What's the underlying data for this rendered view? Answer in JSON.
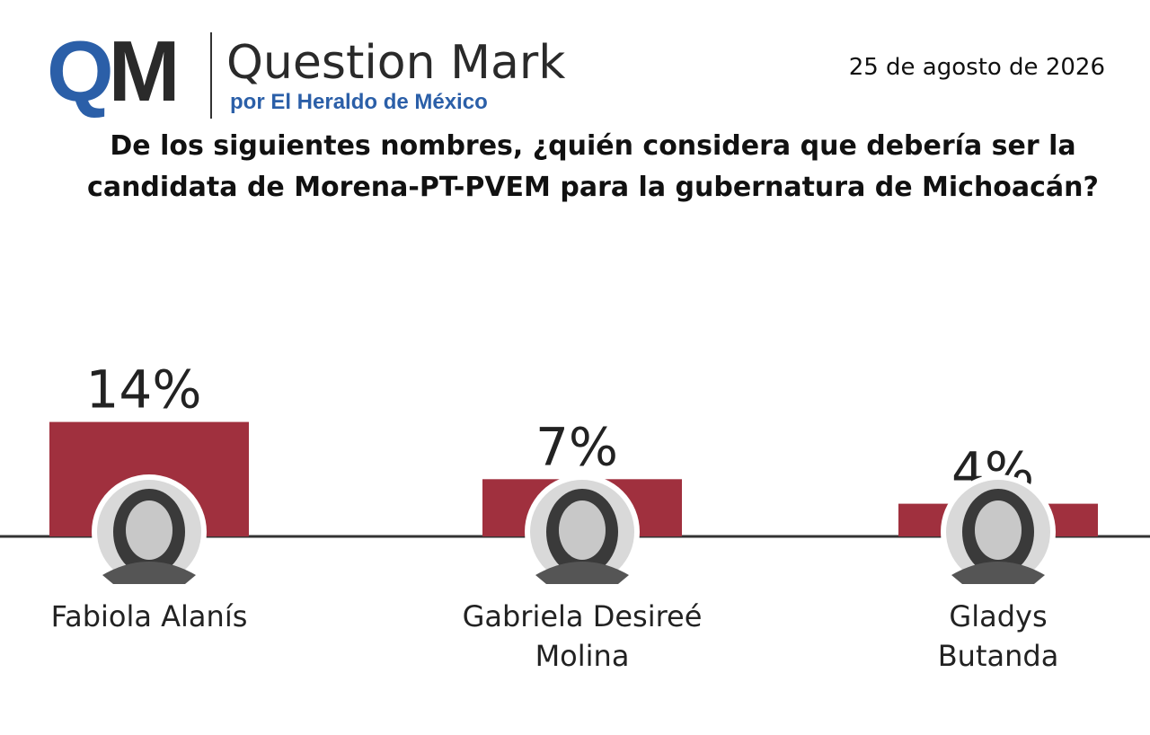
{
  "header": {
    "logo": "QM",
    "brand": "Question Mark",
    "brand_subtitle": "por El Heraldo de México",
    "date": "25 de agosto de 2026"
  },
  "chart_data": {
    "type": "bar",
    "title": "De los siguientes nombres, ¿quién considera que debería ser la candidata de Morena-PT-PVEM para la gubernatura de Michoacán?",
    "categories": [
      "Fabiola Alanís",
      "Gabriela Desireé\nMolina",
      "Gladys\nButanda"
    ],
    "values": [
      14,
      7,
      4
    ],
    "value_labels": [
      "14%",
      "7%",
      "4%"
    ],
    "color": "#a0303e"
  }
}
